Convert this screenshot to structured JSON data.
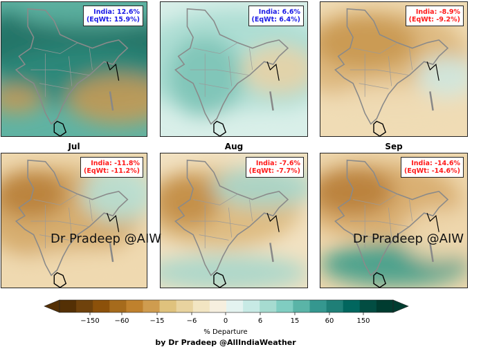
{
  "panels": [
    {
      "id": "top-1",
      "title": "",
      "india": "India: 12.6%",
      "eqwt": "(EqWt: 15.9%)",
      "color": "#1a1ae6",
      "palette": [
        "#2e8a7c",
        "#1d6f62",
        "#5fb3a3",
        "#c59a55"
      ]
    },
    {
      "id": "top-2",
      "title": "",
      "india": "India: 6.6%",
      "eqwt": "(EqWt: 6.4%)",
      "color": "#1a1ae6",
      "palette": [
        "#a9dcd2",
        "#7cc3b6",
        "#d9efe9",
        "#e8d2a5"
      ]
    },
    {
      "id": "top-3",
      "title": "",
      "india": "India: -8.9%",
      "eqwt": "(EqWt: -9.2%)",
      "color": "#ff1a1a",
      "palette": [
        "#dcb67a",
        "#c99850",
        "#f0dcb5",
        "#cfe9e2"
      ]
    },
    {
      "id": "jul",
      "title": "Jul",
      "india": "India: -11.8%",
      "eqwt": "(EqWt: -11.2%)",
      "color": "#ff1a1a",
      "palette": [
        "#d4a868",
        "#b9813a",
        "#efd9b0",
        "#b7e0d6"
      ],
      "watermark": "Dr Pradeep @AIW"
    },
    {
      "id": "aug",
      "title": "Aug",
      "india": "India: -7.6%",
      "eqwt": "(EqWt: -7.7%)",
      "color": "#ff1a1a",
      "palette": [
        "#dcb87c",
        "#c28d45",
        "#f2e2c2",
        "#a6d6cb"
      ]
    },
    {
      "id": "sep",
      "title": "Sep",
      "india": "India: -14.6%",
      "eqwt": "(EqWt: -14.6%)",
      "color": "#ff1a1a",
      "palette": [
        "#d7ab6b",
        "#b98039",
        "#eed7ad",
        "#3f9c8a"
      ],
      "watermark": "Dr Pradeep @AIW"
    }
  ],
  "colorbar": {
    "ticks": [
      "−150",
      "−60",
      "−15",
      "−6",
      "0",
      "6",
      "15",
      "60",
      "150"
    ],
    "tick_values": [
      -150,
      -60,
      -15,
      -6,
      0,
      6,
      15,
      60,
      150
    ],
    "label": "% Departure",
    "colors_neg": [
      "#543005",
      "#6f420c",
      "#8c510a",
      "#a66b1c",
      "#bf812d",
      "#cf9c4f",
      "#dfc27d",
      "#e8d39f",
      "#f2e5c2",
      "#f6efdf"
    ],
    "colors_pos": [
      "#e4f3f0",
      "#c7eae5",
      "#a6dbd0",
      "#80cdc1",
      "#5ab4a7",
      "#35978f",
      "#1f7f77",
      "#01665e",
      "#024d42",
      "#003c30"
    ]
  },
  "credit": "by Dr Pradeep @AllIndiaWeather",
  "side_watermark": "Dr Pradeep @AIW"
}
